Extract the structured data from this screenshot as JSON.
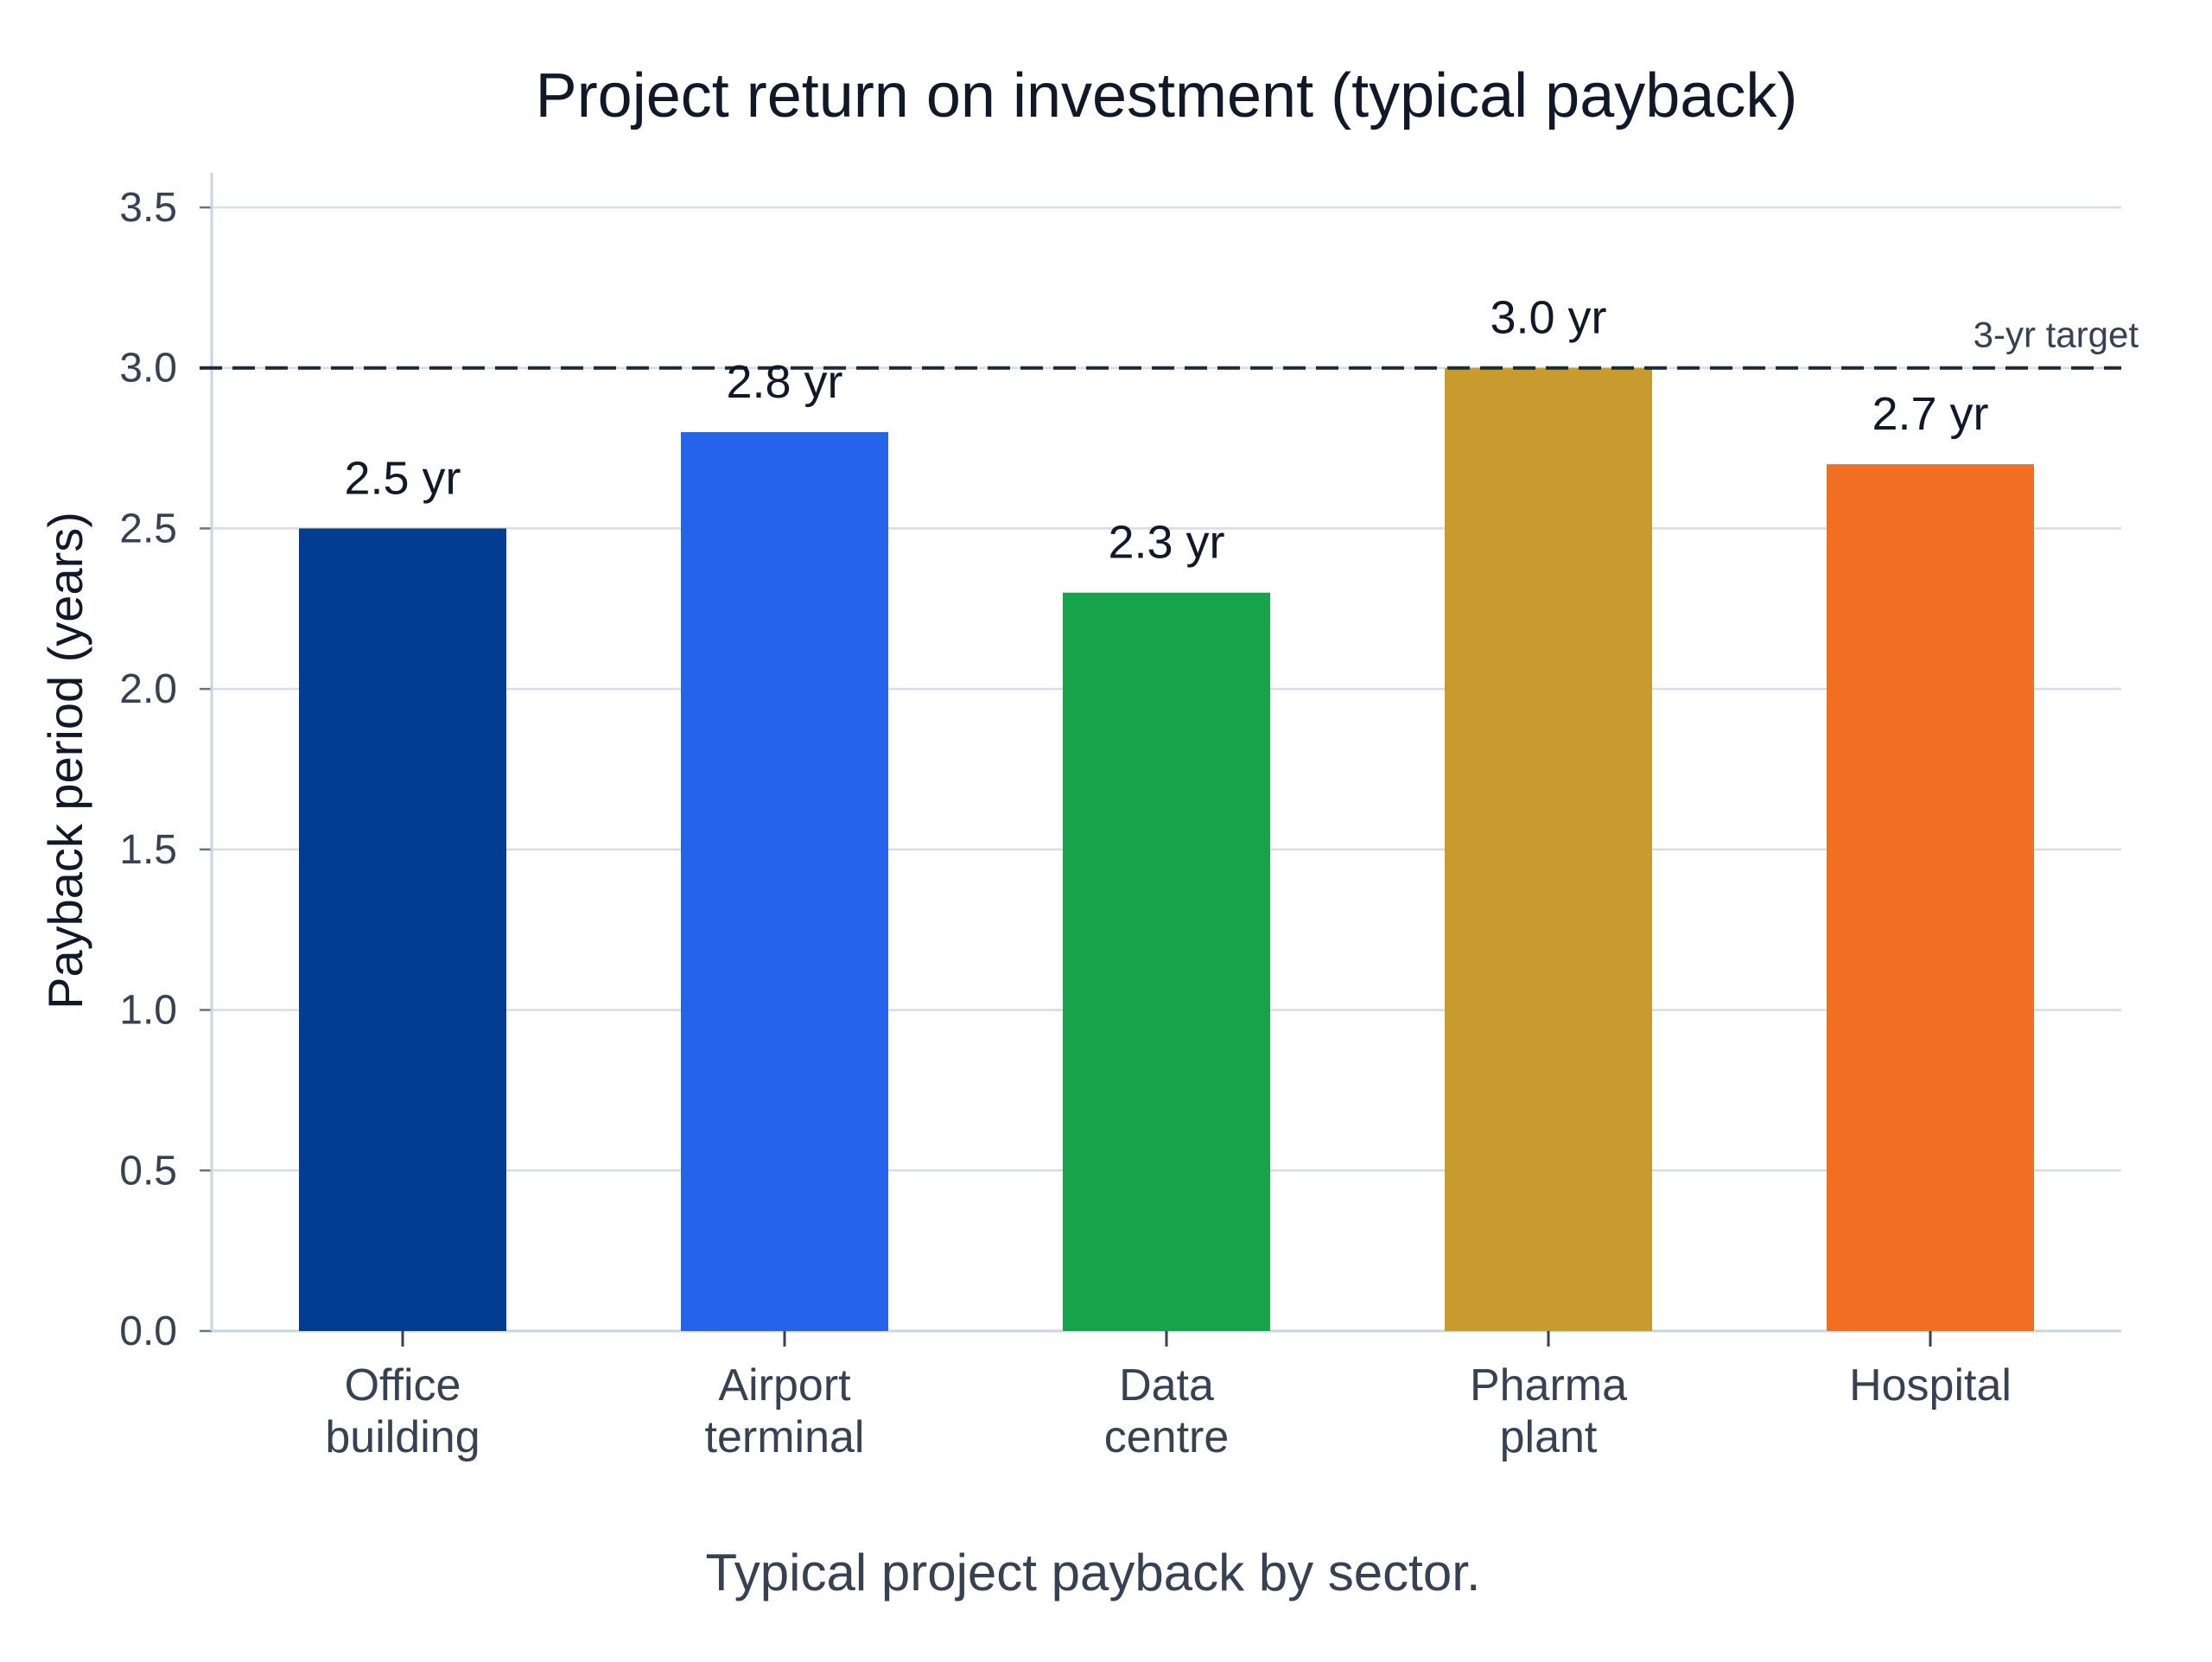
{
  "chart_data": {
    "type": "bar",
    "title": "Project return on investment (typical payback)",
    "xlabel": "",
    "ylabel": "Payback period (years)",
    "ylim": [
      0,
      3.5
    ],
    "yticks": [
      "0.0",
      "0.5",
      "1.0",
      "1.5",
      "2.0",
      "2.5",
      "3.0",
      "3.5"
    ],
    "ytick_values": [
      0,
      0.5,
      1.0,
      1.5,
      2.0,
      2.5,
      3.0,
      3.5
    ],
    "categories": [
      [
        "Office",
        "building"
      ],
      [
        "Airport",
        "terminal"
      ],
      [
        "Data",
        "centre"
      ],
      [
        "Pharma",
        "plant"
      ],
      [
        "Hospital"
      ]
    ],
    "values": [
      2.5,
      2.8,
      2.3,
      3.0,
      2.7
    ],
    "data_labels": [
      "2.5 yr",
      "2.8 yr",
      "2.3 yr",
      "3.0 yr",
      "2.7 yr"
    ],
    "colors": [
      "#023d91",
      "#2563eb",
      "#16a34a",
      "#c89b2f",
      "#f06f22"
    ],
    "reference_line": {
      "value": 3.0,
      "label": "3-yr target",
      "style": "dashed",
      "color": "#1f2937"
    },
    "grid": true,
    "caption": "Typical project payback by sector."
  }
}
